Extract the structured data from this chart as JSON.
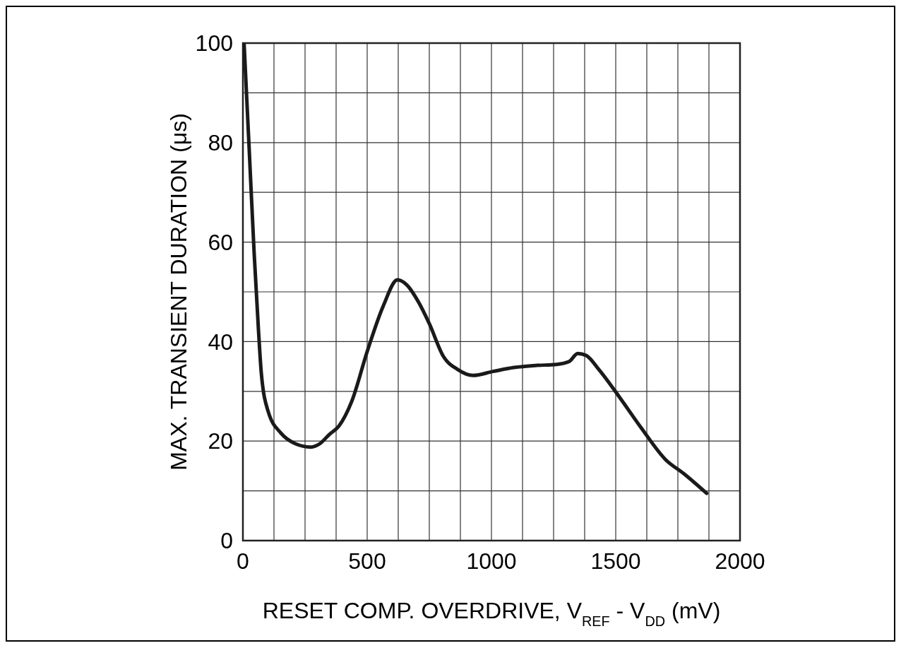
{
  "chart_data": {
    "type": "line",
    "xlabel": "RESET COMP. OVERDRIVE, V$_{REF}$ - V$_{DD}$ (mV)",
    "ylabel": "MAX. TRANSIENT DURATION (μs)",
    "xlim": [
      0,
      2000
    ],
    "ylim": [
      0,
      100
    ],
    "xticks": [
      0,
      {
        "value": 125,
        "label": null
      },
      {
        "value": 250,
        "label": null
      },
      {
        "value": 375,
        "label": null
      },
      500,
      {
        "value": 625,
        "label": null
      },
      {
        "value": 750,
        "label": null
      },
      {
        "value": 875,
        "label": null
      },
      1000,
      {
        "value": 1125,
        "label": null
      },
      {
        "value": 1250,
        "label": null
      },
      {
        "value": 1375,
        "label": null
      },
      1500,
      {
        "value": 1625,
        "label": null
      },
      {
        "value": 1750,
        "label": null
      },
      {
        "value": 1875,
        "label": null
      },
      2000
    ],
    "yticks": [
      0,
      {
        "value": 10,
        "label": null
      },
      20,
      {
        "value": 30,
        "label": null
      },
      40,
      {
        "value": 50,
        "label": null
      },
      60,
      {
        "value": 70,
        "label": null
      },
      80,
      {
        "value": 90,
        "label": null
      },
      100
    ],
    "grid": true,
    "line_style": "solid",
    "series": [
      {
        "color": "#1a1a1a",
        "x": [
          5,
          25,
          45,
          63,
          74,
          102,
          153,
          210,
          273,
          310,
          347,
          386,
          438,
          500,
          565,
          622,
          659,
          707,
          750,
          807,
          864,
          926,
          1006,
          1091,
          1176,
          1261,
          1313,
          1347,
          1381,
          1432,
          1517,
          1602,
          1702,
          1773,
          1866
        ],
        "values": [
          99.7,
          79,
          58,
          42,
          33.7,
          25.9,
          21.6,
          19.5,
          18.8,
          19.5,
          21.3,
          23,
          28,
          38,
          47.2,
          52.4,
          51.4,
          47.9,
          43.6,
          37,
          34.4,
          33.2,
          34,
          34.8,
          35.2,
          35.4,
          36,
          37.6,
          37.2,
          34.4,
          28.7,
          22.7,
          16.2,
          13.5,
          9.5
        ]
      }
    ]
  }
}
